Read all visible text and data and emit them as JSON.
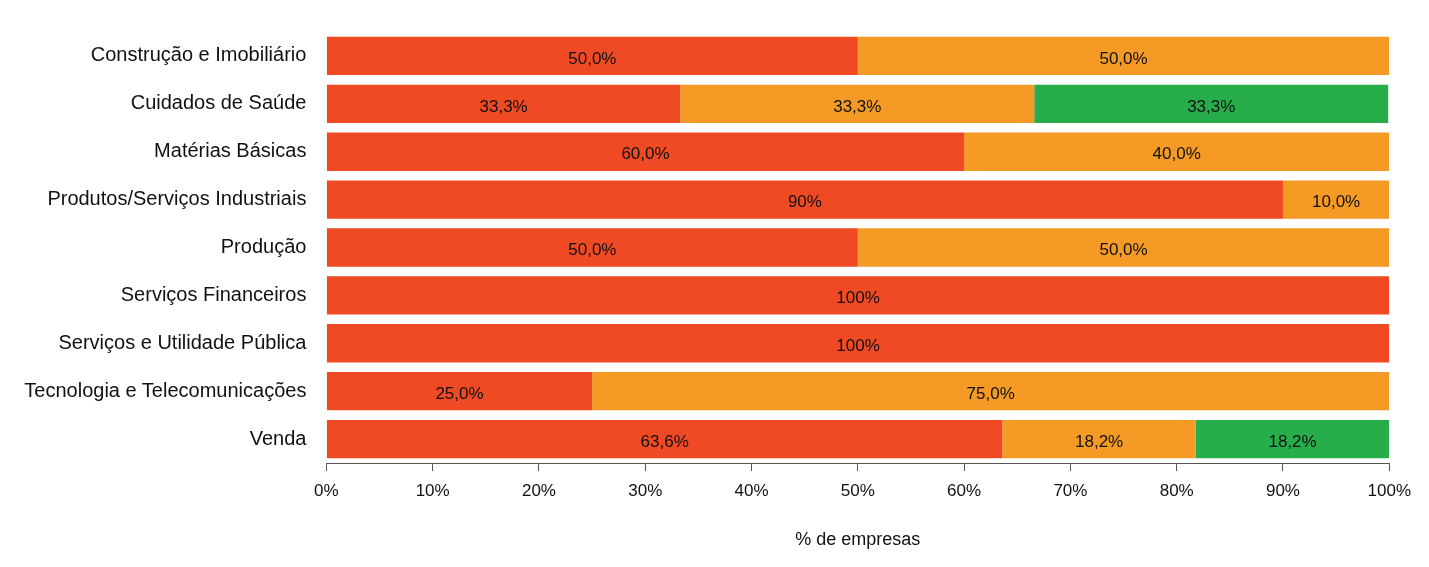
{
  "chart_data": {
    "type": "bar",
    "orientation": "horizontal",
    "stacked": true,
    "xlabel": "% de empresas",
    "categories": [
      "Construção e Imobiliário",
      "Cuidados de Saúde",
      "Matérias Básicas",
      "Produtos/Serviços Industriais",
      "Produção",
      "Serviços Financeiros",
      "Serviços e Utilidade Pública",
      "Tecnologia e Telecomunicações",
      "Venda"
    ],
    "series": [
      {
        "color": "#f04a25",
        "values": [
          50,
          33.3,
          60,
          90,
          50,
          100,
          100,
          25,
          63.6
        ],
        "value_labels": [
          "50,0%",
          "33,3%",
          "60,0%",
          "90%",
          "50,0%",
          "100%",
          "100%",
          "25,0%",
          "63,6%"
        ]
      },
      {
        "color": "#f59a25",
        "values": [
          50,
          33.3,
          40,
          10,
          50,
          null,
          null,
          75,
          18.2
        ],
        "value_labels": [
          "50,0%",
          "33,3%",
          "40,0%",
          "10,0%",
          "50,0%",
          null,
          null,
          "75,0%",
          "18,2%"
        ]
      },
      {
        "color": "#27ae4a",
        "values": [
          null,
          33.3,
          null,
          null,
          null,
          null,
          null,
          null,
          18.2
        ],
        "value_labels": [
          null,
          "33,3%",
          null,
          null,
          null,
          null,
          null,
          null,
          "18,2%"
        ]
      }
    ],
    "xlim": [
      0,
      100
    ],
    "xticks": [
      {
        "value": 0,
        "label": "0%"
      },
      {
        "value": 10,
        "label": "10%"
      },
      {
        "value": 20,
        "label": "20%"
      },
      {
        "value": 30,
        "label": "30%"
      },
      {
        "value": 40,
        "label": "40%"
      },
      {
        "value": 50,
        "label": "50%"
      },
      {
        "value": 60,
        "label": "60%"
      },
      {
        "value": 70,
        "label": "70%"
      },
      {
        "value": 80,
        "label": "80%"
      },
      {
        "value": 90,
        "label": "90%"
      },
      {
        "value": 100,
        "label": "100%"
      }
    ],
    "grid": false,
    "legend": false
  }
}
